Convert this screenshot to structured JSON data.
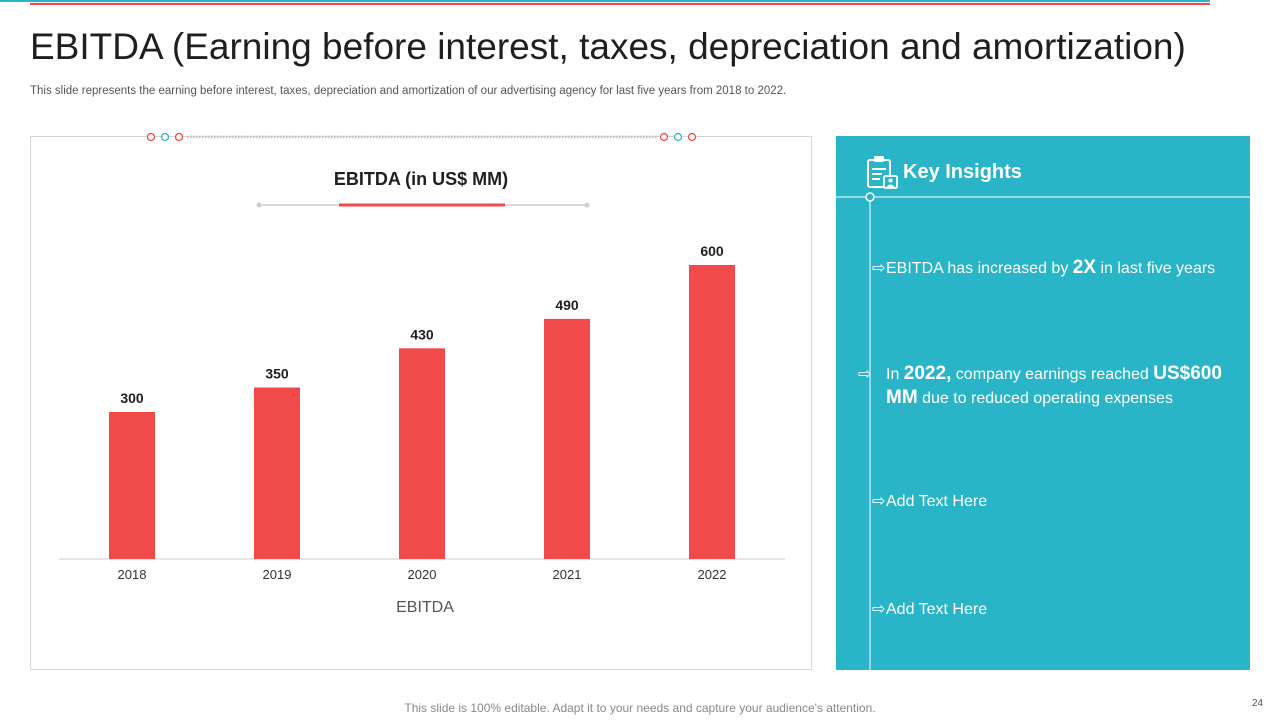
{
  "title": "EBITDA (Earning before interest, taxes, depreciation and amortization)",
  "subtitle": "This slide represents the earning before interest, taxes, depreciation and amortization of our advertising agency for last five years from 2018 to 2022.",
  "chart_data": {
    "type": "bar",
    "title": "EBITDA (in US$ MM)",
    "xlabel": "EBITDA",
    "ylabel": "",
    "categories": [
      "2018",
      "2019",
      "2020",
      "2021",
      "2022"
    ],
    "values": [
      300,
      350,
      430,
      490,
      600
    ],
    "data_labels": [
      "300",
      "350",
      "430",
      "490",
      "600"
    ],
    "ylim": [
      0,
      600
    ],
    "grid": false,
    "bar_color": "#f04a4a"
  },
  "insights": {
    "title": "Key Insights",
    "icon": "clipboard-user-icon",
    "items": [
      {
        "arrow": "⇨",
        "pre": "EBITDA has increased by ",
        "bold": "2X",
        "post": " in last five years"
      },
      {
        "arrow": "⇨",
        "pre": "In ",
        "bold": "2022,",
        "mid": " company earnings reached ",
        "bold2": "US$600 MM",
        "post": " due to reduced operating expenses"
      },
      {
        "arrow": "⇨",
        "text": "Add Text Here"
      },
      {
        "arrow": "⇨",
        "text": "Add Text Here"
      }
    ]
  },
  "footer": "This slide is 100% editable. Adapt it to your needs and capture your audience's attention.",
  "page_number": "24",
  "colors": {
    "accent": "#f04a4a",
    "panel": "#2ab4c8",
    "teal_line": "#2ab4c8"
  }
}
